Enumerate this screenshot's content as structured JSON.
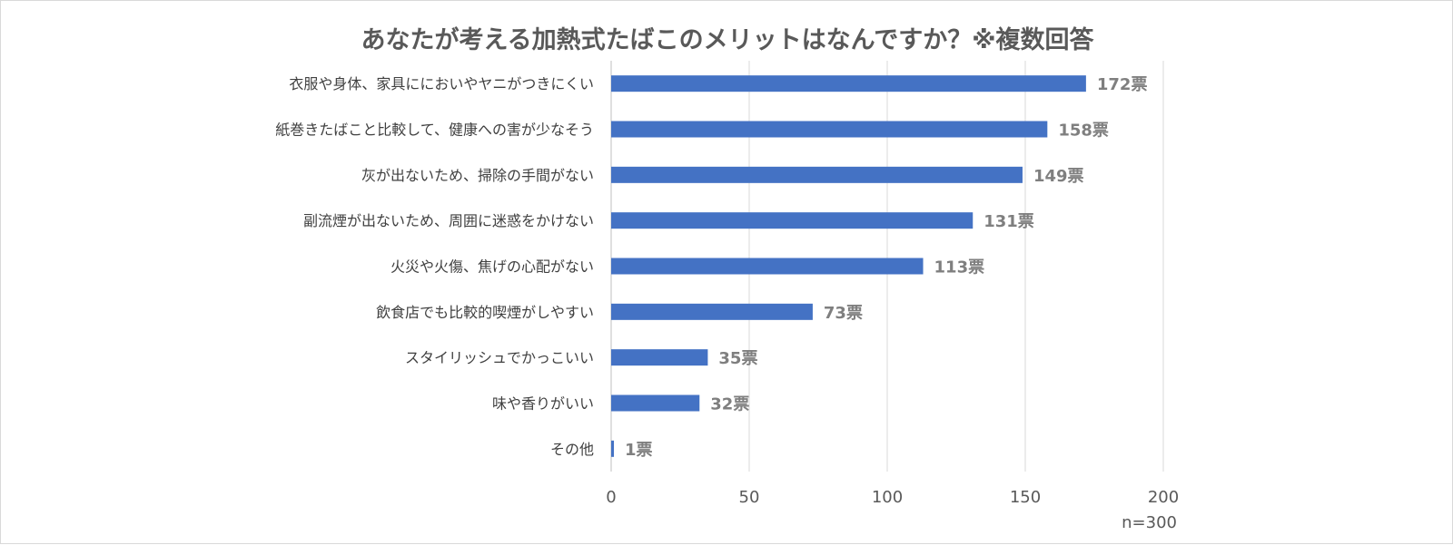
{
  "chart_data": {
    "type": "bar",
    "orientation": "horizontal",
    "title": "あなたが考える加熱式たばこのメリットはなんですか？※複数回答",
    "categories": [
      "衣服や身体、家具ににおいやヤニがつきにくい",
      "紙巻きたばこと比較して、健康への害が少なそう",
      "灰が出ないため、掃除の手間がない",
      "副流煙が出ないため、周囲に迷惑をかけない",
      "火災や火傷、焦げの心配がない",
      "飲食店でも比較的喫煙がしやすい",
      "スタイリッシュでかっこいい",
      "味や香りがいい",
      "その他"
    ],
    "values": [
      172,
      158,
      149,
      131,
      113,
      73,
      35,
      32,
      1
    ],
    "data_labels": [
      "172票",
      "158票",
      "149票",
      "131票",
      "113票",
      "73票",
      "35票",
      "32票",
      "1票"
    ],
    "xlim": [
      0,
      200
    ],
    "xticks": [
      "0",
      "50",
      "100",
      "150",
      "200"
    ],
    "grid": true,
    "legend": "none",
    "bar_color": "#4472c4",
    "note": "n=300"
  }
}
